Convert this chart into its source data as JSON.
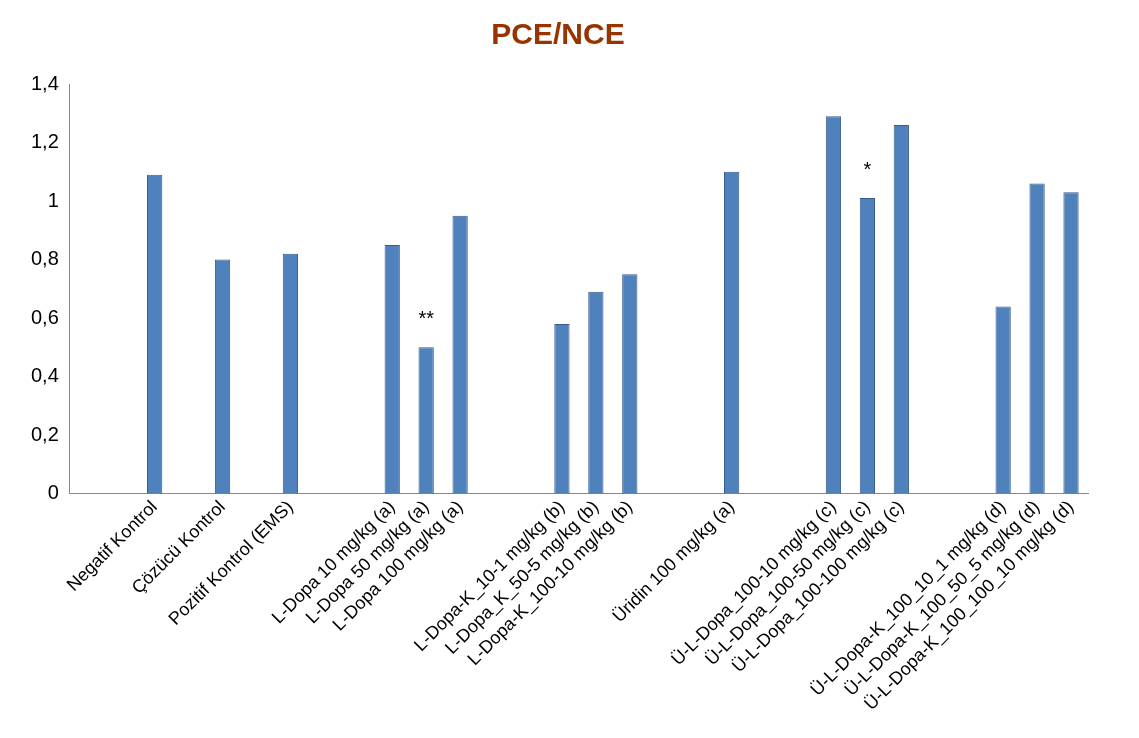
{
  "chart_data": {
    "type": "bar",
    "title": "PCE/NCE",
    "color": "#4f81bd",
    "categories": [
      null,
      null,
      "Negatif Kontrol",
      null,
      "Çözücü Kontrol",
      null,
      "Pozitif Kontrol (EMS)",
      null,
      null,
      "L-Dopa 10 mg/kg (a)",
      "L-Dopa 50 mg/kg (a)",
      "L-Dopa 100 mg/kg (a)",
      null,
      null,
      "L-Dopa-K_10-1 mg/kg (b)",
      "L-Dopa_K_50-5 mg/kg (b)",
      "L-Dopa-K_100-10 mg/kg (b)",
      null,
      null,
      "Üridin 100 mg/kg (a)",
      null,
      null,
      "Ü-L-Dopa_100-10 mg/kg (c)",
      "Ü-L-Dopa_100-50 mg/kg (c)",
      "Ü-L-Dopa_100-100 mg/kg (c)",
      null,
      null,
      "Ü-L-Dopa-K_100_10_1 mg/kg (d)",
      "Ü-L-Dopa-K_100_50_5 mg/kg (d)",
      "Ü-L-Dopa-K_100_100_10 mg/kg (d)"
    ],
    "values": [
      null,
      null,
      1.09,
      null,
      0.8,
      null,
      0.82,
      null,
      null,
      0.85,
      0.5,
      0.95,
      null,
      null,
      0.58,
      0.69,
      0.75,
      null,
      null,
      1.1,
      null,
      null,
      1.29,
      1.01,
      1.26,
      null,
      null,
      0.64,
      1.06,
      1.03
    ],
    "ylim": [
      0,
      1.4
    ],
    "yticks": [
      {
        "value": 0,
        "label": "0"
      },
      {
        "value": 0.2,
        "label": "0,2"
      },
      {
        "value": 0.4,
        "label": "0,4"
      },
      {
        "value": 0.6,
        "label": "0,6"
      },
      {
        "value": 0.8,
        "label": "0,8"
      },
      {
        "value": 1,
        "label": "1"
      },
      {
        "value": 1.2,
        "label": "1,2"
      },
      {
        "value": 1.4,
        "label": "1,4"
      }
    ],
    "grid": false,
    "legend": false,
    "annotations": [
      {
        "text": "**",
        "x": "L-Dopa 50 mg/kg (a)",
        "y": 0.5
      },
      {
        "text": "*",
        "x": "Ü-L-Dopa_100-50 mg/kg (c)",
        "y": 1.01
      }
    ]
  }
}
